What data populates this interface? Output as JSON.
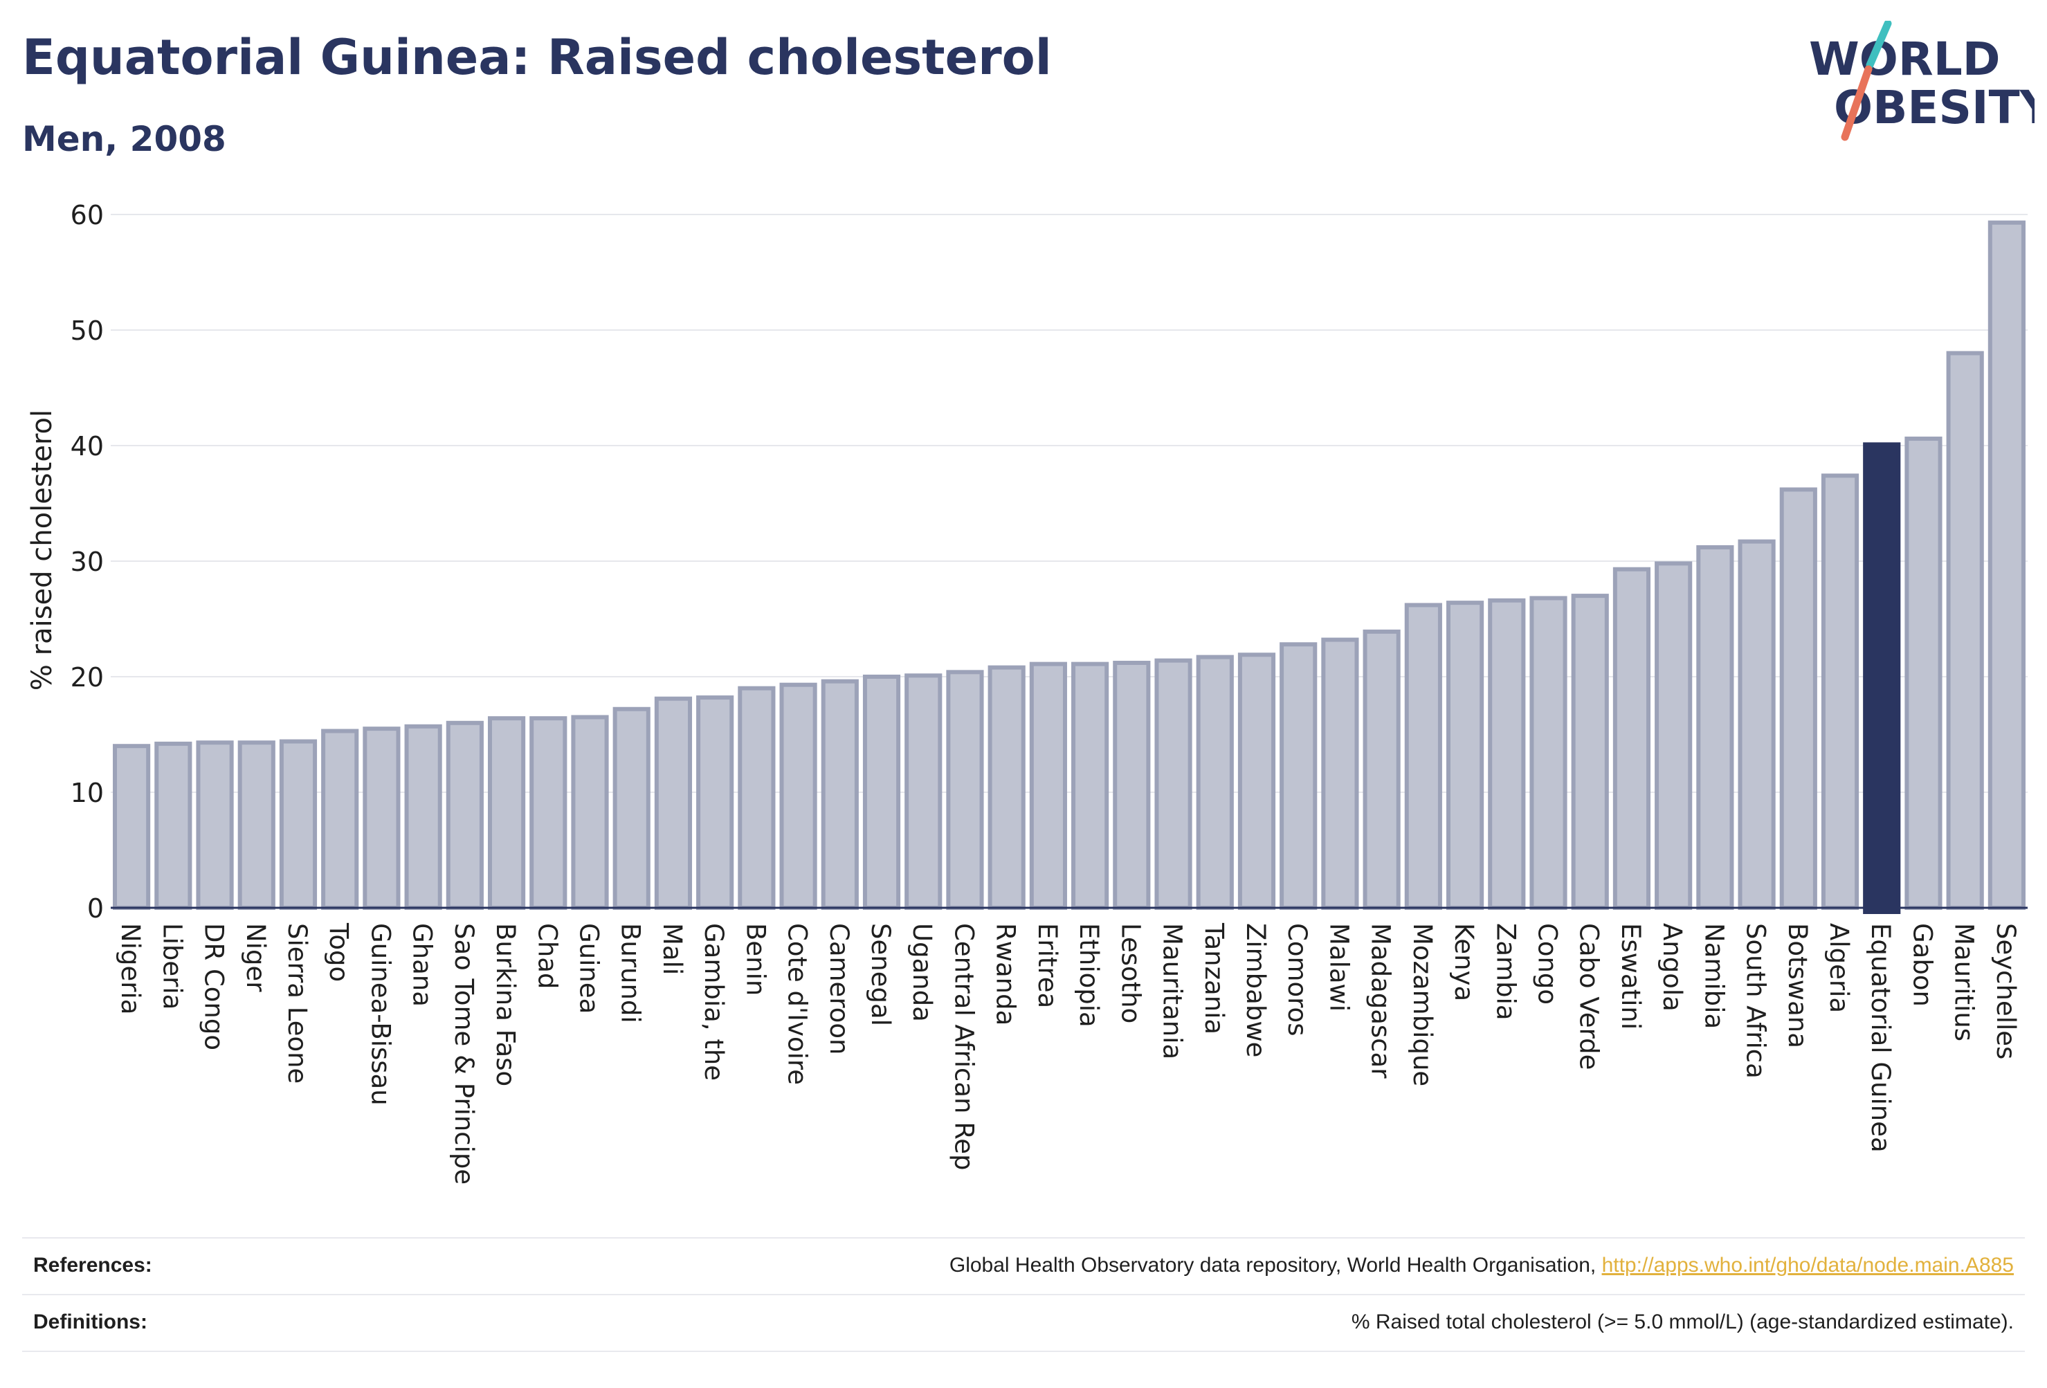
{
  "header": {
    "title": "Equatorial Guinea: Raised cholesterol",
    "subtitle": "Men, 2008"
  },
  "logo": {
    "line1": "WORLD",
    "line2": "OBESITY",
    "colors": {
      "text": "#2a3560",
      "slash_top": "#3fbfbf",
      "slash_bottom": "#e8735a"
    }
  },
  "colors": {
    "bar_fill": "#bfc3d1",
    "bar_stroke": "#9ca2b8",
    "highlight_fill": "#2a3560",
    "grid": "#e6e7ec",
    "axis": "#2a3560",
    "text": "#1f1f1f"
  },
  "chart_data": {
    "type": "bar",
    "ylabel": "% raised cholesterol",
    "xlabel": "",
    "ylim": [
      0,
      60
    ],
    "yticks": [
      0,
      10,
      20,
      30,
      40,
      50,
      60
    ],
    "grid": true,
    "highlight": "Equatorial Guinea",
    "categories": [
      "Nigeria",
      "Liberia",
      "DR Congo",
      "Niger",
      "Sierra Leone",
      "Togo",
      "Guinea-Bissau",
      "Ghana",
      "Sao Tome & Principe",
      "Burkina Faso",
      "Chad",
      "Guinea",
      "Burundi",
      "Mali",
      "Gambia, the",
      "Benin",
      "Cote d'Ivoire",
      "Cameroon",
      "Senegal",
      "Uganda",
      "Central African Rep",
      "Rwanda",
      "Eritrea",
      "Ethiopia",
      "Lesotho",
      "Mauritania",
      "Tanzania",
      "Zimbabwe",
      "Comoros",
      "Malawi",
      "Madagascar",
      "Mozambique",
      "Kenya",
      "Zambia",
      "Congo",
      "Cabo Verde",
      "Eswatini",
      "Angola",
      "Namibia",
      "South Africa",
      "Botswana",
      "Algeria",
      "Equatorial Guinea",
      "Gabon",
      "Mauritius",
      "Seychelles"
    ],
    "values": [
      14.0,
      14.2,
      14.3,
      14.3,
      14.4,
      15.3,
      15.5,
      15.7,
      16.0,
      16.4,
      16.4,
      16.5,
      17.2,
      18.1,
      18.2,
      19.0,
      19.3,
      19.6,
      20.0,
      20.1,
      20.4,
      20.8,
      21.1,
      21.1,
      21.2,
      21.4,
      21.7,
      21.9,
      22.8,
      23.2,
      23.9,
      26.2,
      26.4,
      26.6,
      26.8,
      27.0,
      29.3,
      29.8,
      31.2,
      31.7,
      36.2,
      37.4,
      40.1,
      40.6,
      48.0,
      59.3
    ]
  },
  "footer": {
    "references_label": "References:",
    "references_text": "Global Health Observatory data repository, World Health Organisation,",
    "references_link": "http://apps.who.int/gho/data/node.main.A885",
    "definitions_label": "Definitions:",
    "definitions_text": "% Raised total cholesterol (>= 5.0 mmol/L) (age-standardized estimate)."
  }
}
